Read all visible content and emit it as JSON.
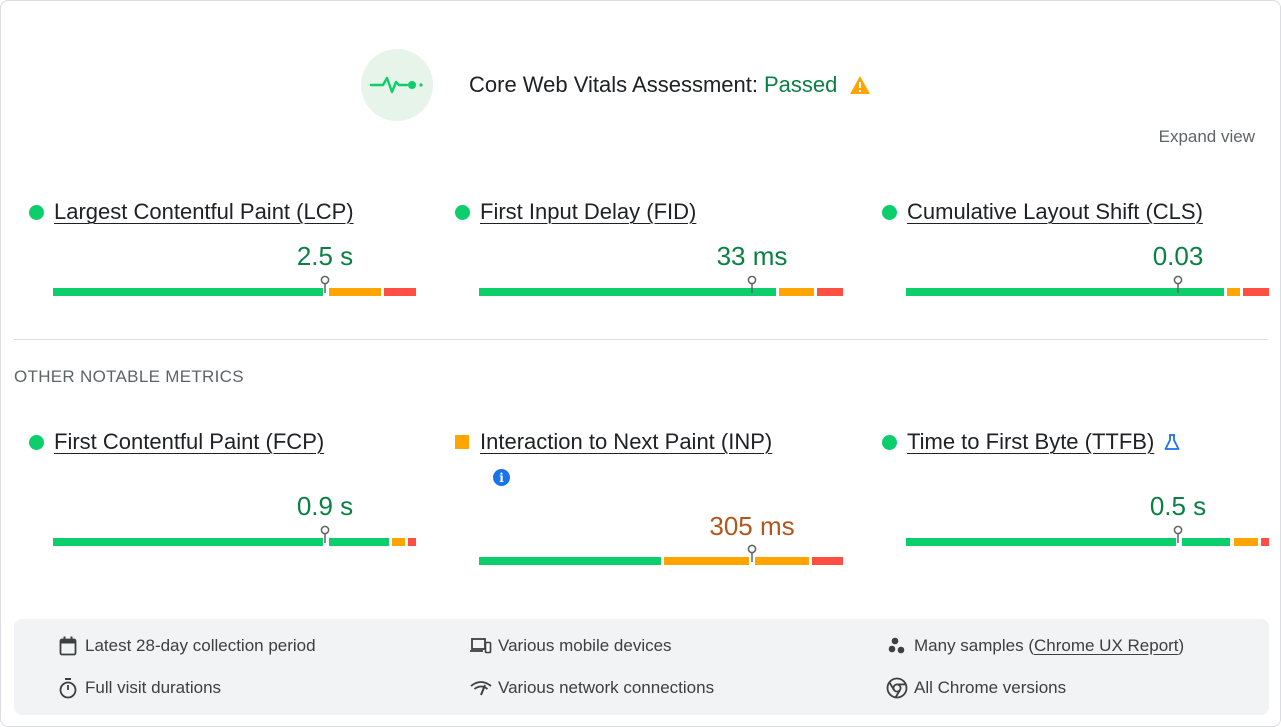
{
  "header": {
    "title": "Core Web Vitals Assessment:",
    "status": "Passed",
    "expand_label": "Expand view"
  },
  "colors": {
    "good": "#0cce6b",
    "average": "#ffa400",
    "poor": "#ff4e42",
    "good_text": "#0b8043",
    "avg_text": "#b3561b"
  },
  "core_metrics": [
    {
      "name": "Largest Contentful Paint (LCP)",
      "value": "2.5 s",
      "rating": "good"
    },
    {
      "name": "First Input Delay (FID)",
      "value": "33 ms",
      "rating": "good"
    },
    {
      "name": "Cumulative Layout Shift (CLS)",
      "value": "0.03",
      "rating": "good"
    }
  ],
  "other_label": "OTHER NOTABLE METRICS",
  "other_metrics": [
    {
      "name": "First Contentful Paint (FCP)",
      "value": "0.9 s",
      "rating": "good"
    },
    {
      "name": "Interaction to Next Paint (INP)",
      "value": "305 ms",
      "rating": "average"
    },
    {
      "name": "Time to First Byte (TTFB)",
      "value": "0.5 s",
      "rating": "good",
      "icon": "flask-icon"
    }
  ],
  "footer": {
    "collection_period": "Latest 28-day collection period",
    "devices": "Various mobile devices",
    "samples_prefix": "Many samples (",
    "samples_link": "Chrome UX Report",
    "samples_suffix": ")",
    "durations": "Full visit durations",
    "network": "Various network connections",
    "chrome_versions": "All Chrome versions"
  }
}
